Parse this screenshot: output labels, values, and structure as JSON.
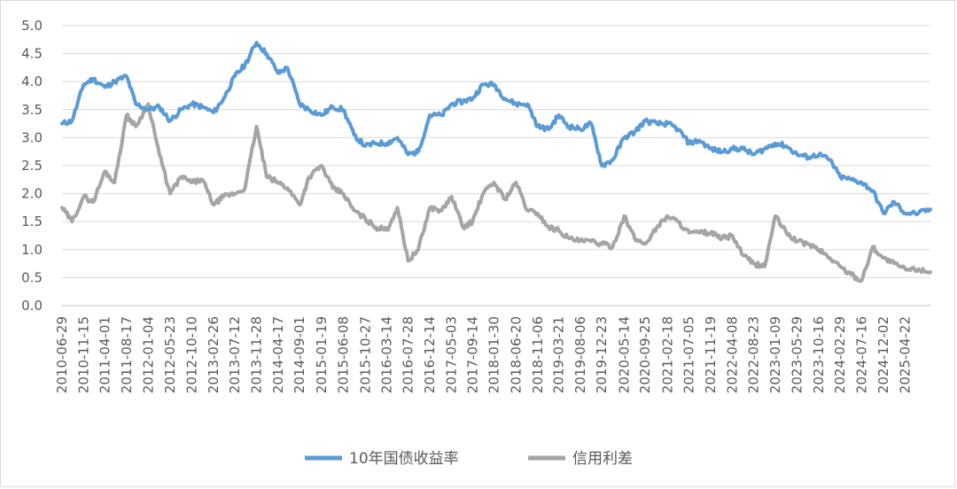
{
  "chart_data": {
    "type": "line",
    "title": "",
    "xlabel": "",
    "ylabel": "",
    "ylim": [
      0,
      5
    ],
    "yticks": [
      "0.0",
      "0.5",
      "1.0",
      "1.5",
      "2.0",
      "2.5",
      "3.0",
      "3.5",
      "4.0",
      "4.5",
      "5.0"
    ],
    "xticks": [
      "2010-06-29",
      "2010-11-15",
      "2011-04-01",
      "2011-08-17",
      "2012-01-04",
      "2012-05-23",
      "2012-10-10",
      "2013-02-26",
      "2013-07-12",
      "2013-11-28",
      "2014-04-17",
      "2014-09-01",
      "2015-01-19",
      "2015-06-08",
      "2015-10-27",
      "2016-03-14",
      "2016-07-28",
      "2016-12-14",
      "2017-05-03",
      "2017-09-14",
      "2018-01-30",
      "2018-06-20",
      "2018-11-06",
      "2019-03-21",
      "2019-08-06",
      "2019-12-23",
      "2020-05-14",
      "2020-09-25",
      "2021-02-18",
      "2021-07-05",
      "2021-11-19",
      "2022-04-08",
      "2022-08-23",
      "2023-01-09",
      "2023-05-29",
      "2023-10-16",
      "2024-02-29",
      "2024-07-16",
      "2024-12-02",
      "2025-04-22"
    ],
    "grid": true,
    "legend_position": "bottom",
    "series": [
      {
        "name": "10年国债收益率",
        "color": "#5b9bd5",
        "x": [
          "2010-06-29",
          "2010-09-01",
          "2010-11-15",
          "2011-01-15",
          "2011-04-01",
          "2011-06-01",
          "2011-08-17",
          "2011-10-15",
          "2012-01-04",
          "2012-03-15",
          "2012-05-23",
          "2012-08-01",
          "2012-10-10",
          "2012-12-15",
          "2013-02-26",
          "2013-05-01",
          "2013-07-12",
          "2013-09-15",
          "2013-11-28",
          "2014-02-01",
          "2014-04-17",
          "2014-06-15",
          "2014-09-01",
          "2014-11-01",
          "2015-01-19",
          "2015-04-01",
          "2015-06-08",
          "2015-08-15",
          "2015-10-27",
          "2016-01-01",
          "2016-03-14",
          "2016-05-20",
          "2016-07-28",
          "2016-10-01",
          "2016-12-14",
          "2017-03-01",
          "2017-05-03",
          "2017-07-15",
          "2017-09-14",
          "2017-11-20",
          "2018-01-30",
          "2018-04-10",
          "2018-06-20",
          "2018-09-01",
          "2018-11-06",
          "2019-01-15",
          "2019-03-21",
          "2019-05-25",
          "2019-08-06",
          "2019-10-15",
          "2019-12-23",
          "2020-03-01",
          "2020-05-14",
          "2020-07-20",
          "2020-09-25",
          "2020-12-10",
          "2021-02-18",
          "2021-04-25",
          "2021-07-05",
          "2021-09-10",
          "2021-11-19",
          "2022-02-01",
          "2022-04-08",
          "2022-06-15",
          "2022-08-23",
          "2022-11-01",
          "2023-01-09",
          "2023-03-20",
          "2023-05-29",
          "2023-08-10",
          "2023-10-16",
          "2023-12-25",
          "2024-02-29",
          "2024-05-10",
          "2024-07-16",
          "2024-09-25",
          "2024-12-02",
          "2025-02-10",
          "2025-04-22",
          "2025-07-15",
          "2025-09-30"
        ],
        "values": [
          3.25,
          3.3,
          3.95,
          4.05,
          3.9,
          4.0,
          4.1,
          3.6,
          3.5,
          3.55,
          3.3,
          3.5,
          3.6,
          3.55,
          3.45,
          3.7,
          4.1,
          4.3,
          4.7,
          4.5,
          4.15,
          4.25,
          3.6,
          3.5,
          3.4,
          3.55,
          3.5,
          3.05,
          2.85,
          2.9,
          2.9,
          3.0,
          2.7,
          2.75,
          3.4,
          3.4,
          3.6,
          3.65,
          3.7,
          3.95,
          3.95,
          3.7,
          3.6,
          3.6,
          3.2,
          3.15,
          3.4,
          3.2,
          3.15,
          3.25,
          2.5,
          2.6,
          3.0,
          3.1,
          3.3,
          3.25,
          3.25,
          3.15,
          2.9,
          2.95,
          2.8,
          2.75,
          2.8,
          2.8,
          2.7,
          2.8,
          2.9,
          2.85,
          2.7,
          2.65,
          2.7,
          2.6,
          2.3,
          2.25,
          2.2,
          2.05,
          1.65,
          1.85,
          1.65,
          1.65,
          1.72
        ]
      },
      {
        "name": "信用利差",
        "color": "#a5a5a5",
        "x": [
          "2010-06-29",
          "2010-09-01",
          "2010-11-15",
          "2011-01-15",
          "2011-04-01",
          "2011-06-01",
          "2011-08-17",
          "2011-10-15",
          "2012-01-04",
          "2012-03-15",
          "2012-05-23",
          "2012-08-01",
          "2012-10-10",
          "2012-12-15",
          "2013-02-26",
          "2013-05-01",
          "2013-07-12",
          "2013-09-15",
          "2013-11-28",
          "2014-02-01",
          "2014-04-17",
          "2014-06-15",
          "2014-09-01",
          "2014-11-01",
          "2015-01-19",
          "2015-04-01",
          "2015-06-08",
          "2015-08-15",
          "2015-10-27",
          "2016-01-01",
          "2016-03-14",
          "2016-05-20",
          "2016-07-28",
          "2016-10-01",
          "2016-12-14",
          "2017-03-01",
          "2017-05-03",
          "2017-07-15",
          "2017-09-14",
          "2017-11-20",
          "2018-01-30",
          "2018-04-10",
          "2018-06-20",
          "2018-09-01",
          "2018-11-06",
          "2019-01-15",
          "2019-03-21",
          "2019-05-25",
          "2019-08-06",
          "2019-10-15",
          "2019-12-23",
          "2020-03-01",
          "2020-05-14",
          "2020-07-20",
          "2020-09-25",
          "2020-12-10",
          "2021-02-18",
          "2021-04-25",
          "2021-07-05",
          "2021-09-10",
          "2021-11-19",
          "2022-02-01",
          "2022-04-08",
          "2022-06-15",
          "2022-08-23",
          "2022-11-01",
          "2023-01-09",
          "2023-03-20",
          "2023-05-29",
          "2023-08-10",
          "2023-10-16",
          "2023-12-25",
          "2024-02-29",
          "2024-05-10",
          "2024-07-16",
          "2024-09-25",
          "2024-12-02",
          "2025-02-10",
          "2025-04-22",
          "2025-07-15",
          "2025-09-30"
        ],
        "values": [
          1.75,
          1.5,
          1.95,
          1.85,
          2.4,
          2.2,
          3.4,
          3.2,
          3.6,
          2.7,
          2.0,
          2.3,
          2.2,
          2.25,
          1.8,
          1.95,
          2.0,
          2.1,
          3.2,
          2.3,
          2.2,
          2.1,
          1.8,
          2.3,
          2.5,
          2.1,
          2.0,
          1.7,
          1.55,
          1.4,
          1.35,
          1.75,
          0.8,
          1.0,
          1.75,
          1.7,
          1.95,
          1.4,
          1.5,
          2.0,
          2.2,
          1.9,
          2.2,
          1.7,
          1.65,
          1.4,
          1.35,
          1.2,
          1.15,
          1.15,
          1.1,
          1.05,
          1.6,
          1.2,
          1.1,
          1.4,
          1.6,
          1.5,
          1.3,
          1.3,
          1.3,
          1.2,
          1.25,
          0.9,
          0.75,
          0.7,
          1.6,
          1.3,
          1.15,
          1.1,
          1.0,
          0.85,
          0.7,
          0.55,
          0.45,
          1.05,
          0.85,
          0.75,
          0.65,
          0.65,
          0.6
        ]
      }
    ]
  }
}
